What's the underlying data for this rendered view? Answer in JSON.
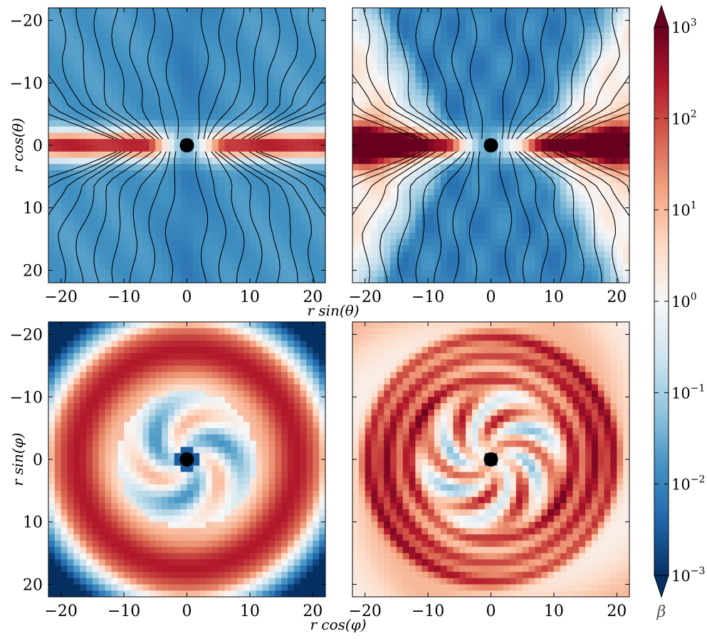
{
  "chart_data": [
    {
      "type": "heatmap",
      "panel": "top-left",
      "quantity": "beta",
      "plane": "r sin(theta) - r cos(theta)",
      "xlim": [
        -22,
        22
      ],
      "ylim": [
        -22,
        22
      ],
      "xticks": [
        -20,
        -10,
        0,
        10,
        20
      ],
      "yticks": [
        -20,
        -10,
        0,
        10,
        20
      ],
      "streamlines": true,
      "features": {
        "midplane_beta": 100,
        "polar_beta": 0.01,
        "midplane_width": 2.0
      }
    },
    {
      "type": "heatmap",
      "panel": "top-right",
      "quantity": "beta",
      "plane": "r sin(theta) - r cos(theta)",
      "xlim": [
        -22,
        22
      ],
      "ylim": [
        -22,
        22
      ],
      "xticks": [
        -20,
        -10,
        0,
        10,
        20
      ],
      "yticks": [],
      "streamlines": true,
      "features": {
        "midplane_beta": 100,
        "polar_beta": 0.01,
        "outer_beta": 1,
        "loops_at_x": [
          -20,
          20
        ]
      }
    },
    {
      "type": "heatmap",
      "panel": "bottom-left",
      "quantity": "beta",
      "plane": "r cos(phi) - r sin(phi)",
      "xlim": [
        -22,
        22
      ],
      "ylim": [
        -22,
        22
      ],
      "xticks": [
        -20,
        -10,
        0,
        10,
        20
      ],
      "yticks": [
        -20,
        -10,
        0,
        10,
        20
      ],
      "streamlines": false,
      "features": {
        "ring_radius": 18,
        "ring_beta": 200,
        "inner_beta": 0.3,
        "spiral_arms": 3
      }
    },
    {
      "type": "heatmap",
      "panel": "bottom-right",
      "quantity": "beta",
      "plane": "r cos(phi) - r sin(phi)",
      "xlim": [
        -22,
        22
      ],
      "ylim": [
        -22,
        22
      ],
      "xticks": [
        -20,
        -10,
        0,
        10,
        20
      ],
      "yticks": [],
      "streamlines": false,
      "features": {
        "ring_radii": [
          13,
          16,
          19
        ],
        "ring_beta": 300,
        "spiral_arms": 6
      }
    }
  ],
  "colorbar": {
    "label": "β",
    "scale": "log",
    "range": [
      0.001,
      1000
    ],
    "ticks": [
      {
        "value": 1000,
        "base": "10",
        "exp": "3"
      },
      {
        "value": 100,
        "base": "10",
        "exp": "2"
      },
      {
        "value": 10,
        "base": "10",
        "exp": "1"
      },
      {
        "value": 1,
        "base": "10",
        "exp": "0"
      },
      {
        "value": 0.1,
        "base": "10",
        "exp": "−1"
      },
      {
        "value": 0.01,
        "base": "10",
        "exp": "−2"
      },
      {
        "value": 0.001,
        "base": "10",
        "exp": "−3"
      }
    ],
    "colormap": "RdBu_r",
    "extend": "both"
  },
  "labels": {
    "top_ylabel": "r cos(θ)",
    "top_xlabel": "r sin(θ)",
    "bottom_ylabel": "r sin(φ)",
    "bottom_xlabel": "r cos(φ)"
  },
  "tick_labels": [
    "−20",
    "−10",
    "0",
    "10",
    "20"
  ]
}
